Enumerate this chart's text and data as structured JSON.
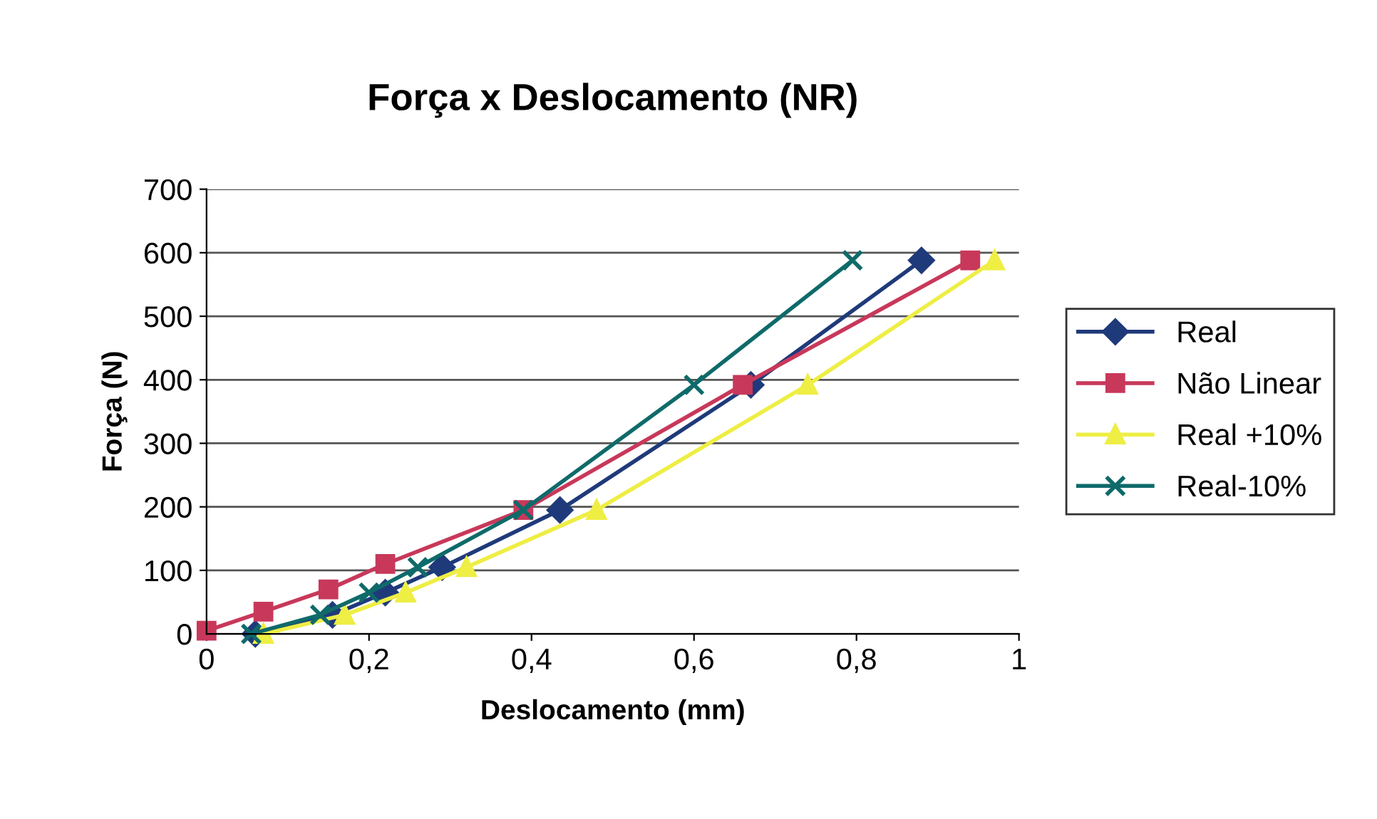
{
  "chart_data": {
    "type": "line",
    "title": "Força x Deslocamento (NR)",
    "xlabel": "Deslocamento (mm)",
    "ylabel": "Força (N)",
    "xlim": [
      0,
      1
    ],
    "ylim": [
      0,
      700
    ],
    "xticks": [
      0,
      {
        "value": 0.2,
        "label": "0,2"
      },
      {
        "value": 0.4,
        "label": "0,4"
      },
      {
        "value": 0.6,
        "label": "0,6"
      },
      {
        "value": 0.8,
        "label": "0,8"
      },
      1
    ],
    "yticks": [
      0,
      100,
      200,
      300,
      400,
      500,
      600,
      700
    ],
    "grid": "y",
    "legend": "right",
    "line_style": "solid",
    "series": [
      {
        "name": "Real",
        "color": "#1f3a7a",
        "marker": "diamond",
        "x": [
          0.06,
          0.155,
          0.22,
          0.29,
          0.435,
          0.67,
          0.88
        ],
        "values": [
          0,
          30,
          65,
          105,
          195,
          392,
          588
        ]
      },
      {
        "name": "Não Linear",
        "color": "#c8385a",
        "marker": "square",
        "x": [
          0,
          0.07,
          0.15,
          0.22,
          0.39,
          0.66,
          0.94
        ],
        "values": [
          5,
          35,
          70,
          110,
          195,
          392,
          588
        ]
      },
      {
        "name": "Real +10%",
        "color": "#eeee44",
        "marker": "triangle",
        "x": [
          0.07,
          0.17,
          0.245,
          0.32,
          0.48,
          0.74,
          0.97
        ],
        "values": [
          0,
          30,
          65,
          105,
          195,
          392,
          588
        ]
      },
      {
        "name": "Real-10%",
        "color": "#0f6a6a",
        "marker": "cross",
        "x": [
          0.055,
          0.14,
          0.2,
          0.26,
          0.39,
          0.6,
          0.795
        ],
        "values": [
          0,
          30,
          65,
          105,
          195,
          392,
          588
        ]
      }
    ]
  }
}
